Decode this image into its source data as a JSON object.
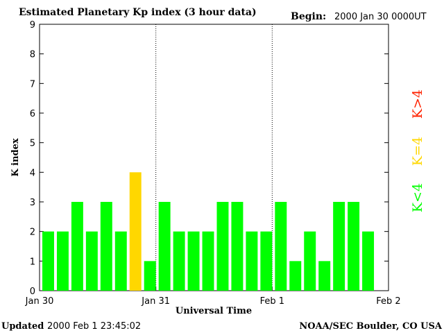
{
  "header": {
    "title": "Estimated Planetary Kp index (3 hour data)",
    "begin_label": "Begin:",
    "begin_value": "2000 Jan 30 0000UT"
  },
  "footer": {
    "updated_label": "Updated",
    "updated_value": "2000 Feb  1 23:45:02",
    "source": "NOAA/SEC Boulder, CO USA"
  },
  "legend": [
    {
      "label": "K<4",
      "color": "#00ff00"
    },
    {
      "label": "K=4",
      "color": "#ffd700"
    },
    {
      "label": "K>4",
      "color": "#ff2200"
    }
  ],
  "colors": {
    "low": "#00ff00",
    "mid": "#ffd700",
    "high": "#ff2200"
  },
  "chart_data": {
    "type": "bar",
    "title": "Estimated Planetary Kp index (3 hour data)",
    "xlabel": "Universal Time",
    "ylabel": "K index",
    "ylim": [
      0,
      9
    ],
    "yticks": [
      0,
      1,
      2,
      3,
      4,
      5,
      6,
      7,
      8,
      9
    ],
    "xlim_days": [
      0,
      3
    ],
    "x_tick_labels": [
      "Jan 30",
      "Jan 31",
      "Feb 1",
      "Feb 2"
    ],
    "day_separators": [
      1,
      2
    ],
    "interval_hours": 3,
    "values": [
      2,
      2,
      3,
      2,
      3,
      2,
      4,
      1,
      3,
      2,
      2,
      2,
      3,
      3,
      2,
      2,
      3,
      1,
      2,
      1,
      3,
      3,
      2
    ],
    "grid": false
  }
}
